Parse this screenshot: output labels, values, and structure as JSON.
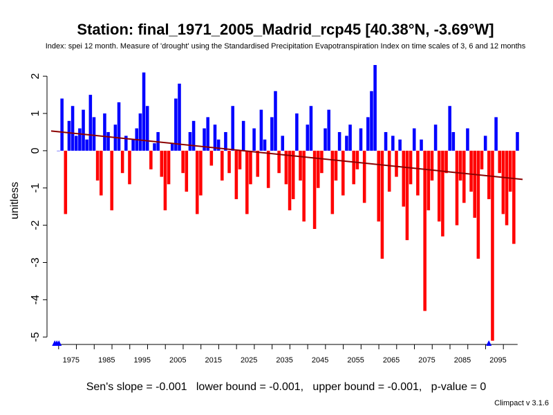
{
  "header": {
    "title": "Station: final_1971_2005_Madrid_rcp45 [40.38°N, -3.69°W]",
    "subtitle": "Index: spei 12 month. Measure of 'drought' using the Standardised Precipitation Evapotranspiration Index on time scales of 3, 6 and 12 months"
  },
  "footer": {
    "stats": "Sen's slope = -0.001   lower bound = -0.001,   upper bound = -0.001,   p-value = 0",
    "version": "Climpact v 3.1.6"
  },
  "chart_data": {
    "type": "bar",
    "ylabel": "unitless",
    "xlabel": "",
    "xlim": [
      1969.4,
      2101.9
    ],
    "ylim": [
      -5.2,
      2.3
    ],
    "x_ticks": [
      "1975",
      "1985",
      "1995",
      "2005",
      "2015",
      "2025",
      "2035",
      "2045",
      "2055",
      "2065",
      "2075",
      "2085",
      "2095"
    ],
    "y_ticks": [
      "2",
      "1",
      "0",
      "-1",
      "-2",
      "-3",
      "-4",
      "-5"
    ],
    "positive_color": "#0000ff",
    "negative_color": "#ff0000",
    "trend_color": "#8b0000",
    "series": [
      {
        "values_note": "annual representative SPEI values, 1971-2100",
        "x_start": 1971,
        "values": [
          0.0,
          1.4,
          -1.7,
          0.8,
          1.2,
          0.4,
          0.6,
          1.1,
          0.3,
          1.5,
          0.9,
          -0.8,
          -1.2,
          1.0,
          0.5,
          -1.6,
          0.7,
          1.3,
          -0.6,
          0.4,
          -0.9,
          0.3,
          0.6,
          1.0,
          2.1,
          1.2,
          -0.5,
          0.2,
          0.5,
          -0.7,
          -1.6,
          -0.9,
          0.2,
          1.4,
          1.8,
          -0.6,
          -1.1,
          0.5,
          0.8,
          -1.7,
          -1.2,
          0.6,
          0.9,
          -0.4,
          0.7,
          0.3,
          -0.8,
          0.5,
          -0.6,
          1.2,
          -1.3,
          -0.5,
          0.8,
          -1.7,
          -0.9,
          0.6,
          -0.7,
          1.1,
          0.3,
          -1.0,
          0.9,
          1.6,
          -0.6,
          0.4,
          -0.9,
          -1.6,
          -1.3,
          1.0,
          -0.8,
          -1.9,
          0.7,
          1.2,
          -2.1,
          -1.0,
          -0.6,
          0.6,
          1.1,
          -1.7,
          -0.8,
          0.5,
          -1.2,
          0.4,
          0.7,
          -0.9,
          -0.5,
          0.6,
          -1.4,
          0.9,
          1.6,
          2.3,
          -1.9,
          -2.9,
          0.5,
          -1.1,
          0.4,
          -0.7,
          0.3,
          -1.5,
          -2.4,
          -0.9,
          0.6,
          -1.2,
          0.3,
          -4.3,
          -1.6,
          -0.8,
          0.7,
          -1.9,
          -2.3,
          -0.6,
          1.2,
          0.5,
          -2.0,
          -0.8,
          -1.4,
          0.6,
          -1.1,
          -1.8,
          -2.9,
          -0.5,
          0.4,
          -1.3,
          -5.1,
          0.9,
          -0.6,
          -1.7,
          -2.0,
          -1.1,
          -2.5,
          0.5
        ]
      }
    ],
    "trend": {
      "x": [
        1969.4,
        2101.9
      ],
      "y": [
        0.53,
        -0.77
      ]
    },
    "markers": [
      {
        "x": 1971,
        "y": -5.2,
        "count": 3
      },
      {
        "x": 2093,
        "y": -5.2,
        "count": 1
      }
    ]
  }
}
